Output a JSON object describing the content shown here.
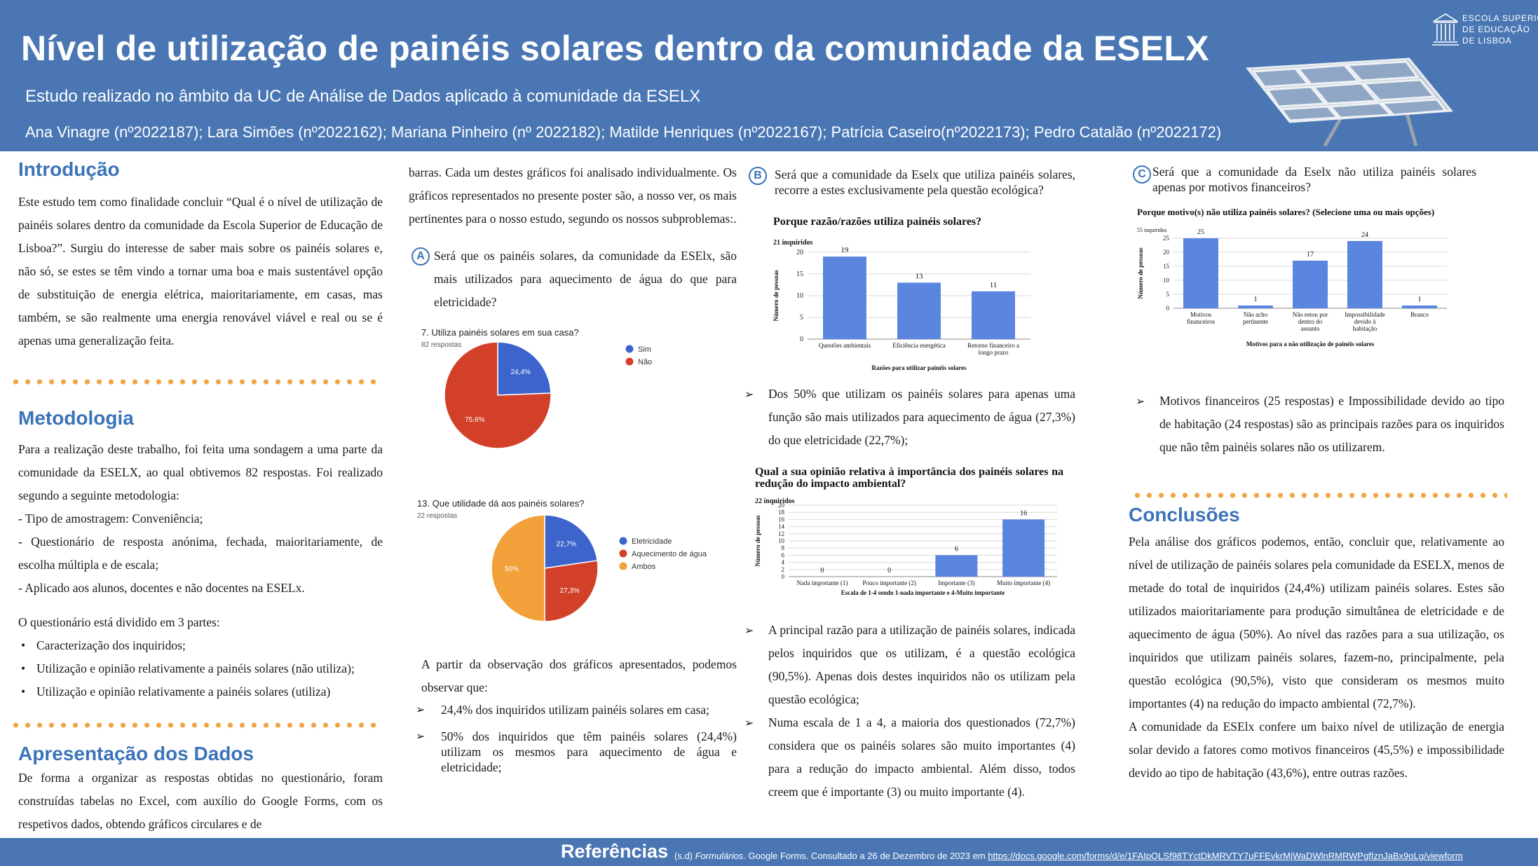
{
  "header": {
    "title": "Nível de utilização de painéis solares dentro da comunidade da ESELX",
    "subtitle": "Estudo realizado no âmbito da UC de Análise de Dados aplicado à comunidade da ESELX",
    "authors": "Ana Vinagre (nº2022187); Lara Simões (nº2022162); Mariana Pinheiro (nº 2022182); Matilde Henriques (nº2022167); Patrícia Caseiro(nº2022173); Pedro Catalão (nº2022172)",
    "logo_lines": [
      "ESCOLA SUPERIOR",
      "DE EDUCAÇÃO",
      "DE LISBOA"
    ]
  },
  "intro": {
    "title": "Introdução",
    "text": "Este estudo tem como finalidade concluir “Qual é o nível de utilização de painéis solares dentro da comunidade da Escola Superior de Educação de Lisboa?”. Surgiu do interesse de saber mais sobre os painéis solares e, não só, se estes se têm vindo a tornar uma boa e mais sustentável opção de substituição de energia elétrica, maioritariamente, em casas, mas também, se são realmente uma energia renovável viável e real ou se é apenas uma generalização feita."
  },
  "metodologia": {
    "title": "Metodologia",
    "text": "Para a realização deste trabalho, foi feita uma sondagem a uma parte da comunidade da ESELX, ao qual obtivemos 82 respostas. Foi realizado segundo a seguinte metodologia:",
    "items": [
      "- Tipo de amostragem: Conveniência;",
      "- Questionário de resposta anónima, fechada, maioritariamente, de escolha múltipla e de escala;",
      "- Aplicado aos alunos, docentes e não docentes na ESELx."
    ],
    "parts_intro": "O questionário está dividido em 3 partes:",
    "parts": [
      "Caracterização dos inquiridos;",
      "Utilização e opinião relativamente a painéis solares (não utiliza);",
      "Utilização e opinião relativamente a painéis solares (utiliza)"
    ]
  },
  "apresentacao": {
    "title": "Apresentação dos Dados",
    "text": "De forma a organizar as respostas obtidas no questionário, foram construídas tabelas no Excel, com auxílio do Google Forms, com os respetivos dados, obtendo gráficos circulares e de",
    "text_cont": "barras. Cada um destes gráficos foi analisado individualmente. Os gráficos representados no presente poster são, a nosso ver, os mais pertinentes para o nosso estudo, segundo os nossos subproblemas:."
  },
  "qA": {
    "badge": "A",
    "text": "Será que os painéis solares, da comunidade da ESElx, são mais utilizados para aquecimento de água do que para eletricidade?"
  },
  "qB": {
    "badge": "B",
    "text": "Será que a comunidade da Eselx que utiliza painéis solares, recorre a estes exclusivamente pela questão ecológica?"
  },
  "qC": {
    "badge": "C",
    "text": "Será que a comunidade da Eselx não utiliza painéis solares apenas por motivos financeiros?"
  },
  "observacao": {
    "intro": "A partir da observação dos gráficos apresentados, podemos observar que:",
    "points": [
      "24,4% dos inquiridos utilizam painéis solares em casa;",
      "50% dos inquiridos que têm painéis solares (24,4%) utilizam os mesmos para aquecimento de água e eletricidade;"
    ]
  },
  "colB": {
    "point1": "Dos 50% que utilizam os painéis solares para apenas uma função são mais utilizados para aquecimento de água (27,3%) do que eletricidade (22,7%);",
    "point2": "A principal razão para a utilização de painéis solares, indicada pelos inquiridos que os utilizam, é a questão ecológica (90,5%). Apenas dois destes inquiridos não os utilizam pela questão ecológica;",
    "point3": "Numa escala de 1 a 4, a maioria dos questionados (72,7%) considera que os painéis solares são muito importantes (4) para a redução do impacto ambiental. Além disso, todos creem que é importante (3) ou muito importante (4)."
  },
  "colC": {
    "point1": "Motivos financeiros (25 respostas) e Impossibilidade devido ao tipo de habitação (24 respostas) são as principais razões para os inquiridos que não têm painéis solares não os utilizarem."
  },
  "conclusoes": {
    "title": "Conclusões",
    "text1": "Pela análise dos gráficos podemos, então, concluir que, relativamente ao nível de utilização de painéis solares pela comunidade da ESELX, menos de metade do total de inquiridos (24,4%) utilizam painéis solares. Estes são utilizados maioritariamente para produção simultânea de eletricidade e de aquecimento de água (50%). Ao nível das razões para a sua utilização, os inquiridos que utilizam painéis solares, fazem-no, principalmente, pela questão ecológica (90,5%), visto que consideram os mesmos muito importantes (4) na redução do impacto ambiental (72,7%).",
    "text2": "A comunidade da ESElx confere um baixo nível de utilização de energia solar devido a fatores como motivos financeiros (45,5%) e impossibilidade devido ao tipo de habitação (43,6%), entre outras razões."
  },
  "references": {
    "title": "Referências",
    "prefix": "(s.d)",
    "work": "Formulários",
    "text": ". Google Forms. Consultado a 26 de Dezembro de 2023 em ",
    "url": "https://docs.google.com/forms/d/e/1FAIpQLSf98TYctDkMRVTY7uFFEvkrMjWaDWlnRMRWPgfIznJaBx9oLg/viewform"
  },
  "colors": {
    "header": "#4a77b4",
    "accent_dots": "#f0a646",
    "bar": "#5b86e0",
    "pie_blue": "#3c64cc",
    "pie_red": "#d2402a",
    "pie_orange": "#f1a03a"
  },
  "chart_data": [
    {
      "type": "pie",
      "title": "7. Utiliza painéis solares em sua casa?",
      "subtitle": "82 respostas",
      "categories": [
        "Sim",
        "Não"
      ],
      "values": [
        24.4,
        75.6
      ],
      "labels": [
        "24,4%",
        "75,6%"
      ],
      "colors": [
        "#3c64cc",
        "#d2402a"
      ],
      "legend": "right"
    },
    {
      "type": "pie",
      "title": "13. Que utilidade dá aos painéis solares?",
      "subtitle": "22 respostas",
      "categories": [
        "Eletricidade",
        "Aquecimento de água",
        "Ambos"
      ],
      "values": [
        22.7,
        27.3,
        50
      ],
      "labels": [
        "22,7%",
        "27,3%",
        "50%"
      ],
      "colors": [
        "#3c64cc",
        "#d2402a",
        "#f1a03a"
      ],
      "legend": "right"
    },
    {
      "type": "bar",
      "title": "Porque razão/razões utiliza painéis solares?",
      "subtitle": "21 inquiridos",
      "categories": [
        "Questões ambientais",
        "Eficiência energética",
        "Retorno financeiro a longo prazo"
      ],
      "values": [
        19,
        13,
        11
      ],
      "xlabel": "Razões para utilizar painéis solares",
      "ylabel": "Número de pessoas",
      "ylim": [
        0,
        20
      ],
      "yticks": [
        0,
        5,
        10,
        15,
        20
      ]
    },
    {
      "type": "bar",
      "title": "Qual a sua opinião relativa à importância dos painéis solares na redução do impacto ambiental?",
      "subtitle": "22 inquiridos",
      "categories": [
        "Nada importante (1)",
        "Pouco importante (2)",
        "Importante (3)",
        "Muito importante (4)"
      ],
      "values": [
        0,
        0,
        6,
        16
      ],
      "xlabel": "Escala de 1-4 sendo 1-nada importante e 4-Muito importante",
      "ylabel": "Número de pessoas",
      "ylim": [
        0,
        20
      ],
      "yticks": [
        0,
        2,
        4,
        6,
        8,
        10,
        12,
        14,
        16,
        18,
        20
      ]
    },
    {
      "type": "bar",
      "title": "Porque motivo(s) não utiliza painéis solares? (Selecione uma ou mais opções)",
      "subtitle": "55 inquiridos",
      "categories": [
        "Motivos financeiros",
        "Não acho pertinente",
        "Não estou por dentro do assunto",
        "Impossibilidade devido à habitação",
        "Branco"
      ],
      "values": [
        25,
        1,
        17,
        24,
        1
      ],
      "xlabel": "Motivos para a não utilização de painéis solares",
      "ylabel": "Número de pessoas",
      "ylim": [
        0,
        25
      ],
      "yticks": [
        0,
        5,
        10,
        15,
        20,
        25
      ]
    }
  ]
}
